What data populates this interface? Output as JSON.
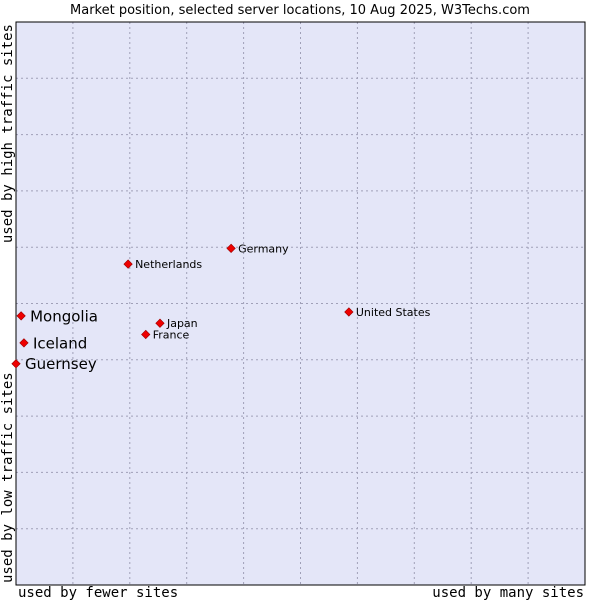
{
  "chart_data": {
    "type": "scatter",
    "title": "Market position, selected server locations, 10 Aug 2025, W3Techs.com",
    "xlabel_left": "used by fewer sites",
    "xlabel_right": "used by many sites",
    "ylabel_bottom": "used by low traffic sites",
    "ylabel_top": "used by high traffic sites",
    "xlim": [
      0,
      100
    ],
    "ylim": [
      0,
      100
    ],
    "grid": true,
    "colors": {
      "plot_background": "#e4e6f8",
      "grid": "#a0a0b8",
      "point": "#ee0000",
      "point_outline": "#990000",
      "border": "#000000"
    },
    "points": [
      {
        "label": "United States",
        "x": 58.5,
        "y": 48.5,
        "emphasis": "normal"
      },
      {
        "label": "Germany",
        "x": 37.8,
        "y": 59.8,
        "emphasis": "normal"
      },
      {
        "label": "Netherlands",
        "x": 19.7,
        "y": 57.0,
        "emphasis": "normal"
      },
      {
        "label": "Japan",
        "x": 25.3,
        "y": 46.5,
        "emphasis": "normal"
      },
      {
        "label": "France",
        "x": 22.8,
        "y": 44.5,
        "emphasis": "normal"
      },
      {
        "label": "Mongolia",
        "x": 0.9,
        "y": 47.8,
        "emphasis": "selected"
      },
      {
        "label": "Iceland",
        "x": 1.4,
        "y": 43.0,
        "emphasis": "selected"
      },
      {
        "label": "Guernsey",
        "x": 0.0,
        "y": 39.3,
        "emphasis": "selected"
      }
    ]
  }
}
